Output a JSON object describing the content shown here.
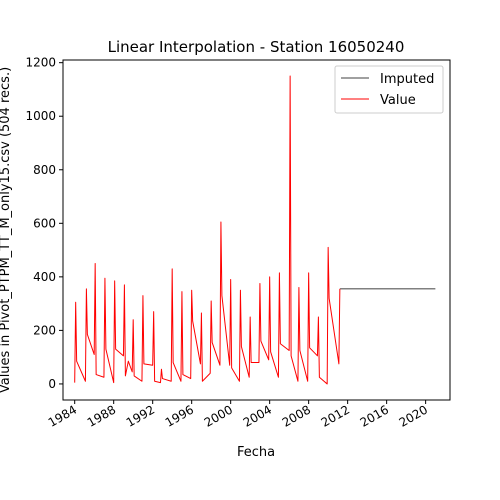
{
  "chart_data": {
    "type": "line",
    "title": "Linear Interpolation - Station 16050240",
    "xlabel": "Fecha",
    "ylabel": "Values in Pivot_PTPM_TT_M_only15.csv (504 recs.)",
    "xlim": [
      1982.8,
      2022.5
    ],
    "ylim": [
      -60,
      1210
    ],
    "x_tick_labels": [
      "1984",
      "1988",
      "1992",
      "1996",
      "2000",
      "2004",
      "2008",
      "2012",
      "2016",
      "2020"
    ],
    "y_tick_labels": [
      "0",
      "200",
      "400",
      "600",
      "800",
      "1000",
      "1200"
    ],
    "legend": {
      "position": "top-right"
    },
    "colors": {
      "Imputed": "#000000",
      "Value": "#ff0000"
    },
    "series": [
      {
        "name": "Imputed",
        "points": [
          [
            2011.2,
            355
          ],
          [
            2021.0,
            355
          ]
        ]
      },
      {
        "name": "Value",
        "points": [
          [
            1984.0,
            5
          ],
          [
            1984.1,
            305
          ],
          [
            1984.2,
            85
          ],
          [
            1985.1,
            10
          ],
          [
            1985.2,
            355
          ],
          [
            1985.3,
            185
          ],
          [
            1986.0,
            110
          ],
          [
            1986.1,
            450
          ],
          [
            1986.2,
            35
          ],
          [
            1987.0,
            25
          ],
          [
            1987.1,
            395
          ],
          [
            1987.2,
            130
          ],
          [
            1988.0,
            5
          ],
          [
            1988.1,
            385
          ],
          [
            1988.2,
            130
          ],
          [
            1989.0,
            105
          ],
          [
            1989.1,
            370
          ],
          [
            1989.2,
            30
          ],
          [
            1989.5,
            85
          ],
          [
            1989.9,
            45
          ],
          [
            1990.0,
            240
          ],
          [
            1990.1,
            30
          ],
          [
            1990.9,
            10
          ],
          [
            1991.0,
            330
          ],
          [
            1991.1,
            75
          ],
          [
            1992.0,
            70
          ],
          [
            1992.1,
            270
          ],
          [
            1992.2,
            10
          ],
          [
            1992.8,
            5
          ],
          [
            1992.9,
            55
          ],
          [
            1993.0,
            20
          ],
          [
            1993.9,
            10
          ],
          [
            1994.0,
            430
          ],
          [
            1994.1,
            80
          ],
          [
            1994.9,
            10
          ],
          [
            1995.0,
            345
          ],
          [
            1995.1,
            35
          ],
          [
            1995.9,
            20
          ],
          [
            1996.0,
            350
          ],
          [
            1996.1,
            235
          ],
          [
            1996.9,
            75
          ],
          [
            1997.0,
            265
          ],
          [
            1997.1,
            10
          ],
          [
            1997.9,
            40
          ],
          [
            1998.0,
            310
          ],
          [
            1998.1,
            155
          ],
          [
            1998.9,
            70
          ],
          [
            1999.0,
            605
          ],
          [
            1999.1,
            330
          ],
          [
            1999.9,
            70
          ],
          [
            2000.0,
            390
          ],
          [
            2000.1,
            60
          ],
          [
            2000.9,
            10
          ],
          [
            2001.0,
            350
          ],
          [
            2001.1,
            140
          ],
          [
            2001.9,
            25
          ],
          [
            2002.0,
            250
          ],
          [
            2002.1,
            80
          ],
          [
            2002.9,
            80
          ],
          [
            2003.0,
            375
          ],
          [
            2003.1,
            160
          ],
          [
            2003.9,
            90
          ],
          [
            2004.0,
            400
          ],
          [
            2004.1,
            120
          ],
          [
            2004.9,
            25
          ],
          [
            2005.0,
            415
          ],
          [
            2005.1,
            150
          ],
          [
            2006.0,
            125
          ],
          [
            2006.1,
            1150
          ],
          [
            2006.2,
            105
          ],
          [
            2006.9,
            10
          ],
          [
            2007.0,
            360
          ],
          [
            2007.1,
            125
          ],
          [
            2007.9,
            10
          ],
          [
            2008.0,
            415
          ],
          [
            2008.1,
            135
          ],
          [
            2008.9,
            105
          ],
          [
            2009.0,
            250
          ],
          [
            2009.1,
            25
          ],
          [
            2009.9,
            0
          ],
          [
            2010.0,
            510
          ],
          [
            2010.1,
            320
          ],
          [
            2011.0,
            100
          ],
          [
            2011.1,
            75
          ],
          [
            2011.2,
            355
          ]
        ]
      }
    ]
  }
}
